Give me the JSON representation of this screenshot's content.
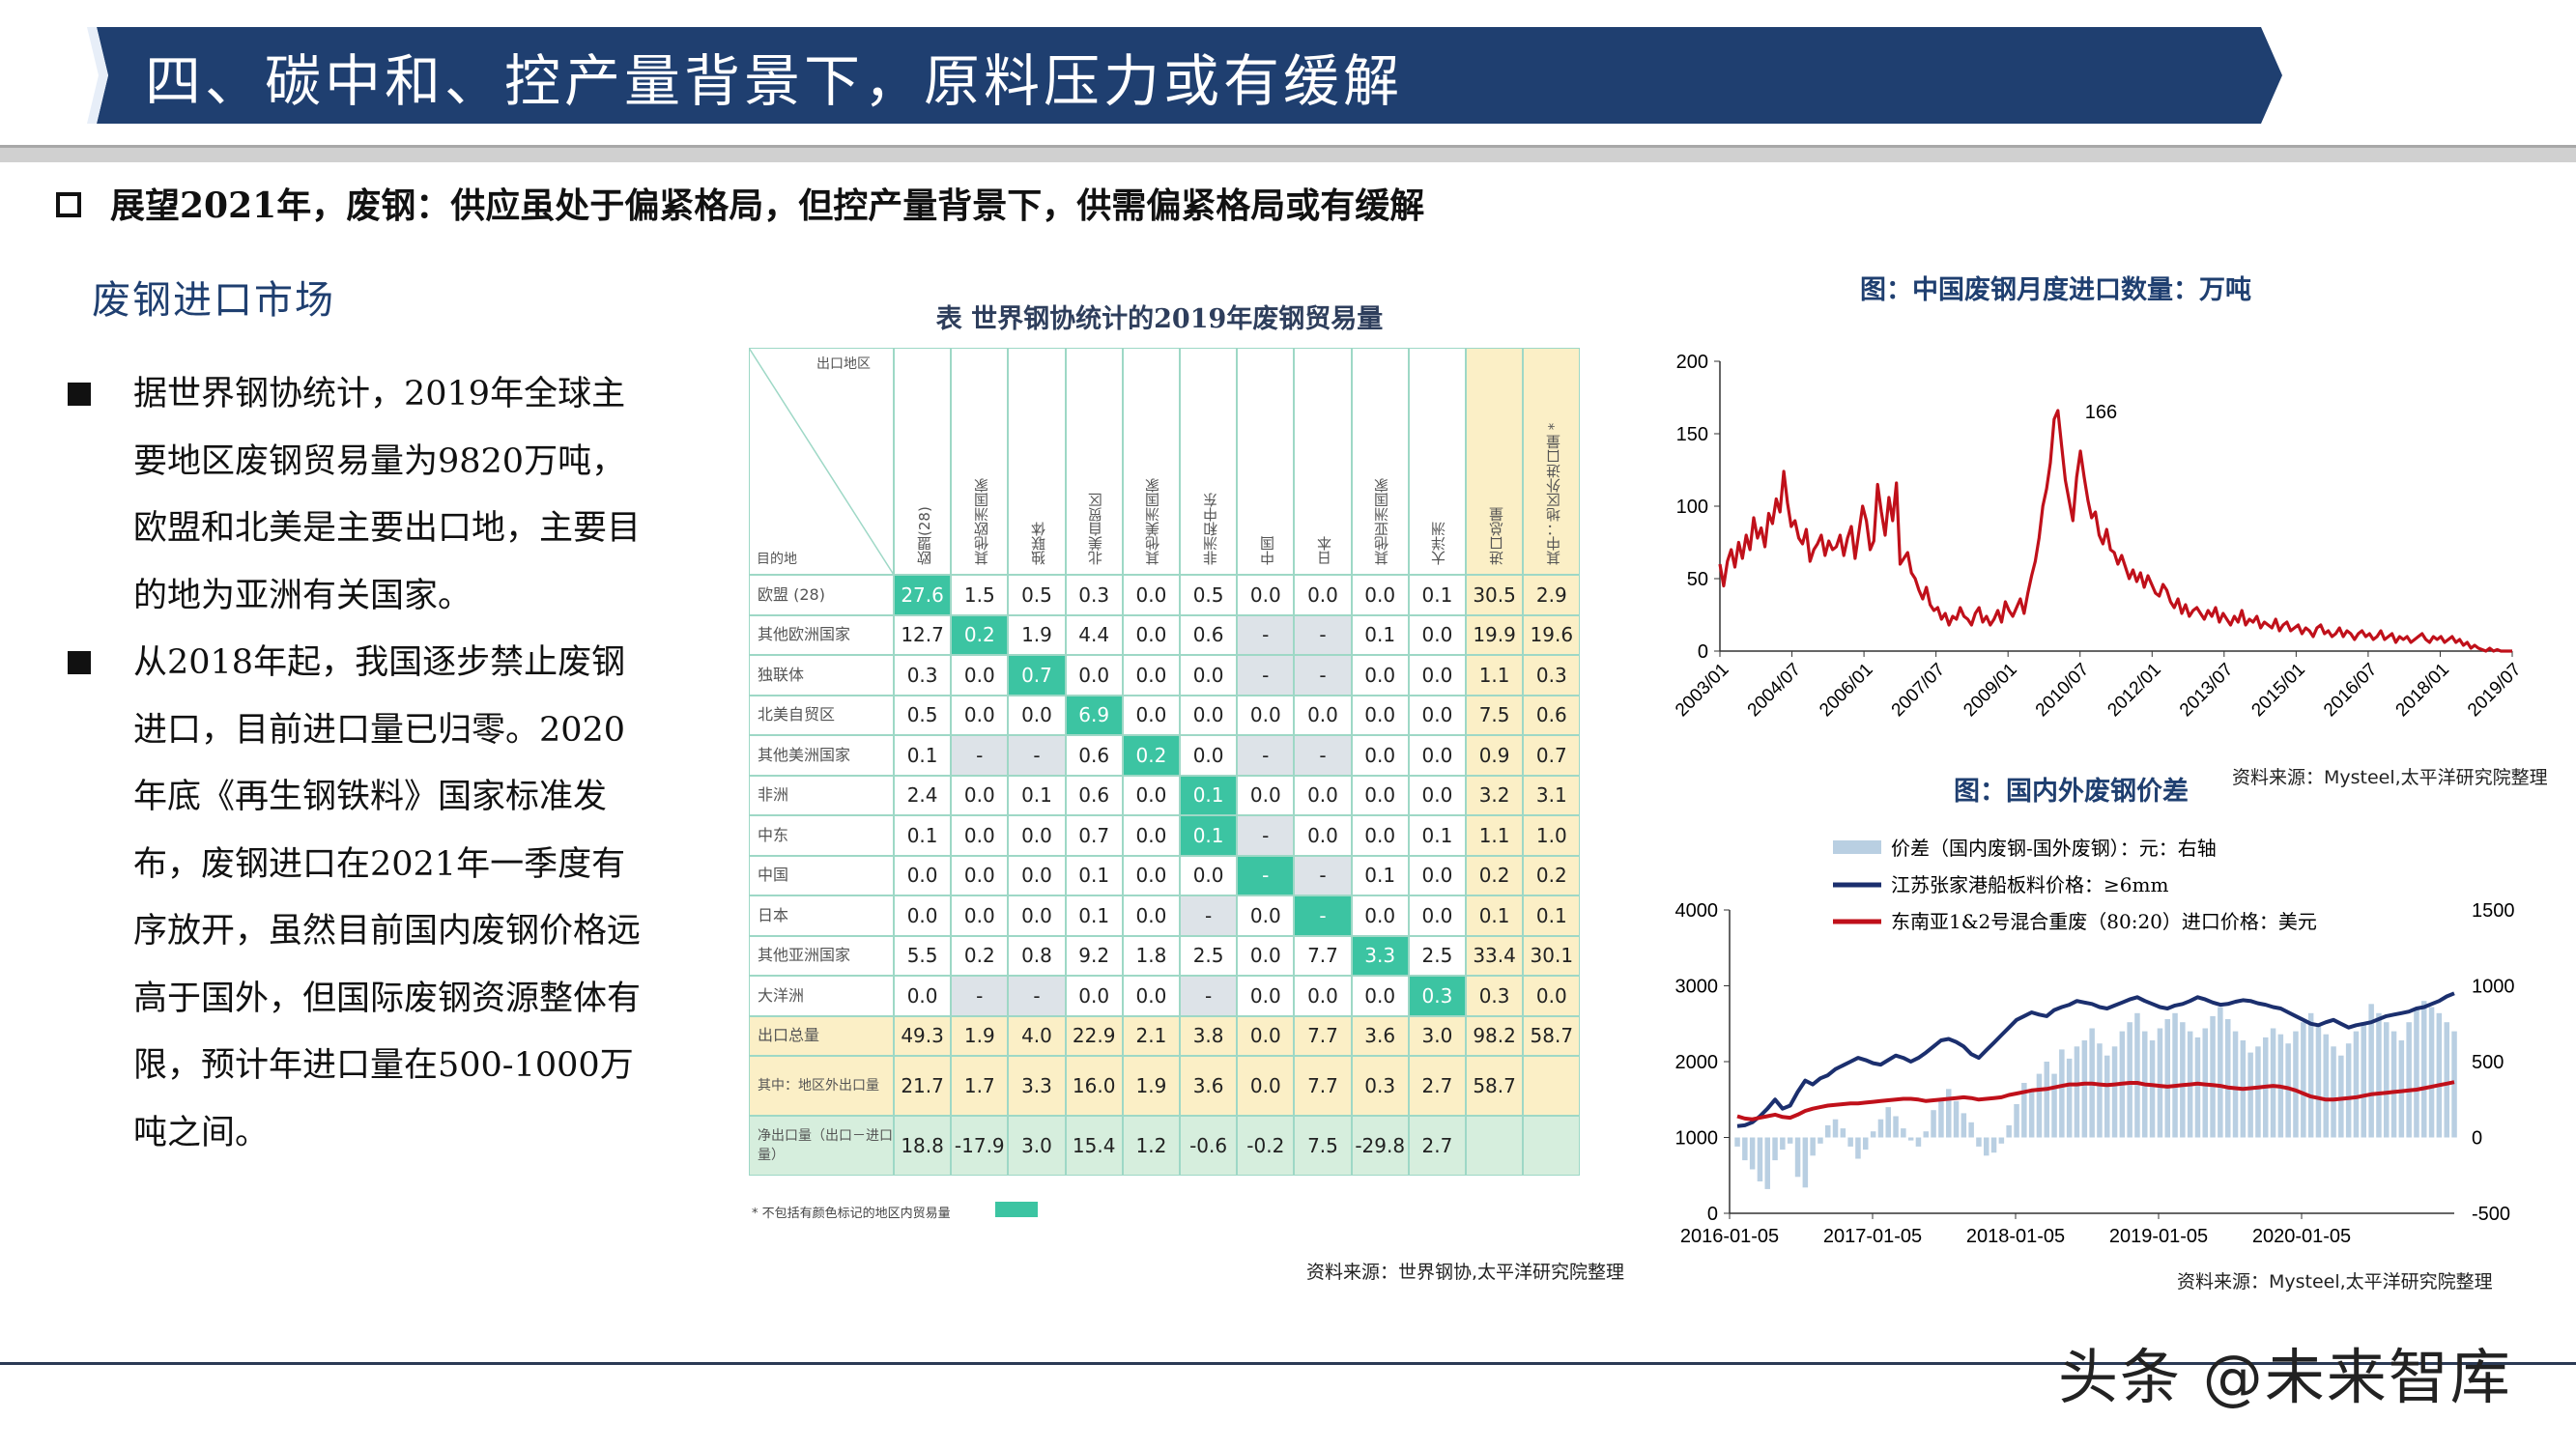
{
  "header": {
    "title": "四、碳中和、控产量背景下，原料压力或有缓解",
    "subheading": "展望2021年，废钢：供应虽处于偏紧格局，但控产量背景下，供需偏紧格局或有缓解"
  },
  "left": {
    "section_title": "废钢进口市场",
    "bullets": [
      "据世界钢协统计，2019年全球主要地区废钢贸易量为9820万吨，欧盟和北美是主要出口地，主要目的地为亚洲有关国家。",
      "从2018年起，我国逐步禁止废钢进口，目前进口量已归零。2020年底《再生钢铁料》国家标准发布，废钢进口在2021年一季度有序放开，虽然目前国内废钢价格远高于国外，但国际废钢资源整体有限，预计年进口量在500-1000万吨之间。"
    ]
  },
  "trade_table": {
    "title": "表  世界钢协统计的2019年废钢贸易量",
    "corner_top": "出口地区",
    "corner_bottom": "目的地",
    "columns": [
      "欧盟(28)",
      "其他欧洲国家",
      "独联体",
      "北美自贸区",
      "其他美洲国家",
      "非洲和中东",
      "中国",
      "日本",
      "其他亚洲国家",
      "大洋洲",
      "进口总量",
      "其中：地区外进口量 *"
    ],
    "rows": [
      {
        "label": "欧盟 (28)",
        "cells": [
          "27.6",
          "1.5",
          "0.5",
          "0.3",
          "0.0",
          "0.5",
          "0.0",
          "0.0",
          "0.0",
          "0.1",
          "30.5",
          "2.9"
        ]
      },
      {
        "label": "其他欧洲国家",
        "cells": [
          "12.7",
          "0.2",
          "1.9",
          "4.4",
          "0.0",
          "0.6",
          "-",
          "-",
          "0.1",
          "0.0",
          "19.9",
          "19.6"
        ]
      },
      {
        "label": "独联体",
        "cells": [
          "0.3",
          "0.0",
          "0.7",
          "0.0",
          "0.0",
          "0.0",
          "-",
          "-",
          "0.0",
          "0.0",
          "1.1",
          "0.3"
        ]
      },
      {
        "label": "北美自贸区",
        "cells": [
          "0.5",
          "0.0",
          "0.0",
          "6.9",
          "0.0",
          "0.0",
          "0.0",
          "0.0",
          "0.0",
          "0.0",
          "7.5",
          "0.6"
        ]
      },
      {
        "label": "其他美洲国家",
        "cells": [
          "0.1",
          "-",
          "-",
          "0.6",
          "0.2",
          "0.0",
          "-",
          "-",
          "0.0",
          "0.0",
          "0.9",
          "0.7"
        ]
      },
      {
        "label": "非洲",
        "cells": [
          "2.4",
          "0.0",
          "0.1",
          "0.6",
          "0.0",
          "0.1",
          "0.0",
          "0.0",
          "0.0",
          "0.0",
          "3.2",
          "3.1"
        ]
      },
      {
        "label": "中东",
        "cells": [
          "0.1",
          "0.0",
          "0.0",
          "0.7",
          "0.0",
          "0.1",
          "-",
          "0.0",
          "0.0",
          "0.1",
          "1.1",
          "1.0"
        ]
      },
      {
        "label": "中国",
        "cells": [
          "0.0",
          "0.0",
          "0.0",
          "0.1",
          "0.0",
          "0.0",
          "-",
          "-",
          "0.1",
          "0.0",
          "0.2",
          "0.2"
        ]
      },
      {
        "label": "日本",
        "cells": [
          "0.0",
          "0.0",
          "0.0",
          "0.1",
          "0.0",
          "-",
          "0.0",
          "-",
          "0.0",
          "0.0",
          "0.1",
          "0.1"
        ]
      },
      {
        "label": "其他亚洲国家",
        "cells": [
          "5.5",
          "0.2",
          "0.8",
          "9.2",
          "1.8",
          "2.5",
          "0.0",
          "7.7",
          "3.3",
          "2.5",
          "33.4",
          "30.1"
        ]
      },
      {
        "label": "大洋洲",
        "cells": [
          "0.0",
          "-",
          "-",
          "0.0",
          "0.0",
          "-",
          "0.0",
          "0.0",
          "0.0",
          "0.3",
          "0.3",
          "0.0"
        ]
      },
      {
        "label": "出口总量",
        "cells": [
          "49.3",
          "1.9",
          "4.0",
          "22.9",
          "2.1",
          "3.8",
          "0.0",
          "7.7",
          "3.6",
          "3.0",
          "98.2",
          "58.7"
        ]
      },
      {
        "label": "其中：地区外出口量",
        "cells": [
          "21.7",
          "1.7",
          "3.3",
          "16.0",
          "1.9",
          "3.6",
          "0.0",
          "7.7",
          "0.3",
          "2.7",
          "58.7",
          ""
        ]
      },
      {
        "label": "净出口量（出口－进口量）",
        "cells": [
          "18.8",
          "-17.9",
          "3.0",
          "15.4",
          "1.2",
          "-0.6",
          "-0.2",
          "7.5",
          "-29.8",
          "2.7",
          "",
          ""
        ]
      }
    ],
    "highlight_cells": [
      [
        0,
        0
      ],
      [
        1,
        1
      ],
      [
        2,
        2
      ],
      [
        3,
        3
      ],
      [
        4,
        4
      ],
      [
        5,
        5
      ],
      [
        6,
        5
      ],
      [
        7,
        6
      ],
      [
        8,
        7
      ],
      [
        9,
        8
      ],
      [
        10,
        9
      ]
    ],
    "note": "* 不包括有颜色标记的地区内贸易量",
    "source": "资料来源：世界钢协,太平洋研究院整理",
    "colors": {
      "green": "#3cc4a2",
      "grey": "#dde3e8",
      "yellow": "#fbefc6",
      "border": "#9ed8c6"
    }
  },
  "chart_data": [
    {
      "type": "line",
      "title": "图：中国废钢月度进口数量：万吨",
      "x_ticks": [
        "2003/01",
        "2004/07",
        "2006/01",
        "2007/07",
        "2009/01",
        "2010/07",
        "2012/01",
        "2013/07",
        "2015/01",
        "2016/07",
        "2018/01",
        "2019/07"
      ],
      "ylim": [
        0,
        200
      ],
      "y_ticks": [
        0,
        50,
        100,
        150,
        200
      ],
      "annotation": "166",
      "color": "#c0101a",
      "series": [
        {
          "values": [
            60,
            45,
            62,
            70,
            58,
            75,
            64,
            80,
            70,
            92,
            78,
            85,
            72,
            95,
            88,
            105,
            96,
            124,
            102,
            86,
            90,
            78,
            74,
            84,
            62,
            70,
            74,
            80,
            66,
            76,
            70,
            72,
            80,
            66,
            78,
            86,
            64,
            82,
            100,
            90,
            70,
            76,
            115,
            96,
            80,
            106,
            90,
            116,
            60,
            64,
            68,
            54,
            50,
            42,
            36,
            44,
            32,
            28,
            30,
            22,
            26,
            18,
            24,
            22,
            30,
            24,
            22,
            18,
            26,
            30,
            20,
            24,
            18,
            22,
            28,
            20,
            34,
            28,
            24,
            30,
            36,
            26,
            40,
            52,
            62,
            78,
            100,
            112,
            130,
            160,
            166,
            142,
            118,
            104,
            90,
            120,
            138,
            120,
            104,
            92,
            96,
            80,
            74,
            84,
            70,
            68,
            60,
            66,
            58,
            50,
            56,
            48,
            54,
            44,
            52,
            46,
            40,
            38,
            46,
            42,
            34,
            30,
            36,
            26,
            32,
            24,
            28,
            30,
            26,
            22,
            28,
            24,
            30,
            20,
            26,
            22,
            18,
            24,
            20,
            28,
            18,
            22,
            20,
            24,
            16,
            20,
            18,
            16,
            22,
            14,
            18,
            20,
            14,
            16,
            18,
            12,
            16,
            14,
            10,
            16,
            18,
            12,
            14,
            10,
            12,
            16,
            10,
            14,
            12,
            8,
            12,
            14,
            10,
            12,
            8,
            10,
            14,
            8,
            10,
            12,
            6,
            10,
            8,
            10,
            6,
            8,
            10,
            12,
            8,
            6,
            10,
            8,
            10,
            6,
            8,
            10,
            6,
            8,
            4,
            6,
            2,
            4,
            2,
            1,
            0,
            2,
            0,
            1,
            0,
            0,
            0,
            0
          ]
        }
      ],
      "source": "资料来源：Mysteel,太平洋研究院整理"
    },
    {
      "type": "line",
      "title": "图：国内外废钢价差",
      "x_ticks": [
        "2016-01-05",
        "2017-01-05",
        "2018-01-05",
        "2019-01-05",
        "2020-01-05"
      ],
      "ylim": [
        0,
        4000
      ],
      "y_ticks": [
        0,
        1000,
        2000,
        3000,
        4000
      ],
      "y2lim": [
        -500,
        1500
      ],
      "y2_ticks": [
        -500,
        0,
        500,
        1000,
        1500
      ],
      "legend": [
        {
          "name": "价差（国内废钢-国外废钢）：元：右轴",
          "color": "#b9cfe2"
        },
        {
          "name": "江苏张家港船板料价格：≥6mm",
          "color": "#1b2f6e"
        },
        {
          "name": "东南亚1&2号混合重废（80:20）进口价格：美元",
          "color": "#c0101a"
        }
      ],
      "series": [
        {
          "name": "价差（国内废钢-国外废钢）：元：右轴",
          "values": [
            -60,
            -150,
            -210,
            -290,
            -340,
            -150,
            -80,
            -40,
            -260,
            -330,
            -120,
            -40,
            80,
            120,
            60,
            -60,
            -140,
            -80,
            40,
            120,
            200,
            140,
            60,
            -20,
            -60,
            40,
            180,
            260,
            320,
            240,
            160,
            100,
            -60,
            -120,
            -100,
            -40,
            80,
            220,
            360,
            300,
            420,
            500,
            420,
            580,
            520,
            600,
            640,
            720,
            620,
            540,
            600,
            700,
            760,
            820,
            700,
            640,
            720,
            780,
            820,
            760,
            700,
            660,
            720,
            800,
            860,
            780,
            700,
            640,
            560,
            600,
            660,
            720,
            680,
            620,
            700,
            760,
            820,
            740,
            680,
            600,
            540,
            620,
            700,
            760,
            880,
            820,
            760,
            700,
            640,
            760,
            840,
            900,
            860,
            820,
            760,
            700
          ]
        },
        {
          "name": "江苏张家港船板料价格：≥6mm",
          "values": [
            1150,
            1160,
            1200,
            1280,
            1380,
            1500,
            1380,
            1420,
            1600,
            1750,
            1700,
            1780,
            1820,
            1900,
            1950,
            2000,
            2050,
            2020,
            1980,
            1960,
            2020,
            2080,
            2050,
            2000,
            2050,
            2120,
            2200,
            2280,
            2300,
            2260,
            2200,
            2100,
            2050,
            2150,
            2250,
            2350,
            2450,
            2550,
            2600,
            2650,
            2620,
            2600,
            2680,
            2720,
            2750,
            2800,
            2780,
            2760,
            2720,
            2700,
            2740,
            2780,
            2820,
            2850,
            2800,
            2760,
            2720,
            2700,
            2740,
            2760,
            2800,
            2850,
            2820,
            2780,
            2750,
            2760,
            2790,
            2810,
            2800,
            2770,
            2750,
            2720,
            2700,
            2650,
            2600,
            2550,
            2500,
            2480,
            2520,
            2550,
            2500,
            2450,
            2480,
            2500,
            2520,
            2560,
            2600,
            2620,
            2640,
            2660,
            2700,
            2720,
            2760,
            2800,
            2860,
            2900
          ]
        },
        {
          "name": "东南亚1&2号混合重废（80:20）进口价格：美元",
          "values": [
            1280,
            1250,
            1240,
            1260,
            1280,
            1300,
            1270,
            1260,
            1300,
            1350,
            1380,
            1400,
            1420,
            1430,
            1440,
            1450,
            1450,
            1460,
            1470,
            1480,
            1490,
            1500,
            1510,
            1510,
            1500,
            1480,
            1490,
            1500,
            1510,
            1520,
            1530,
            1520,
            1500,
            1510,
            1520,
            1530,
            1560,
            1580,
            1600,
            1620,
            1630,
            1640,
            1660,
            1680,
            1700,
            1700,
            1710,
            1710,
            1700,
            1690,
            1700,
            1710,
            1720,
            1720,
            1700,
            1690,
            1680,
            1670,
            1680,
            1690,
            1700,
            1710,
            1700,
            1690,
            1680,
            1660,
            1650,
            1640,
            1650,
            1660,
            1670,
            1680,
            1670,
            1650,
            1620,
            1580,
            1540,
            1520,
            1500,
            1500,
            1510,
            1520,
            1530,
            1550,
            1570,
            1580,
            1590,
            1600,
            1610,
            1620,
            1630,
            1650,
            1670,
            1690,
            1710,
            1730
          ]
        }
      ],
      "source": "资料来源：Mysteel,太平洋研究院整理"
    }
  ],
  "footer": {
    "watermark": "头条 @未来智库"
  }
}
